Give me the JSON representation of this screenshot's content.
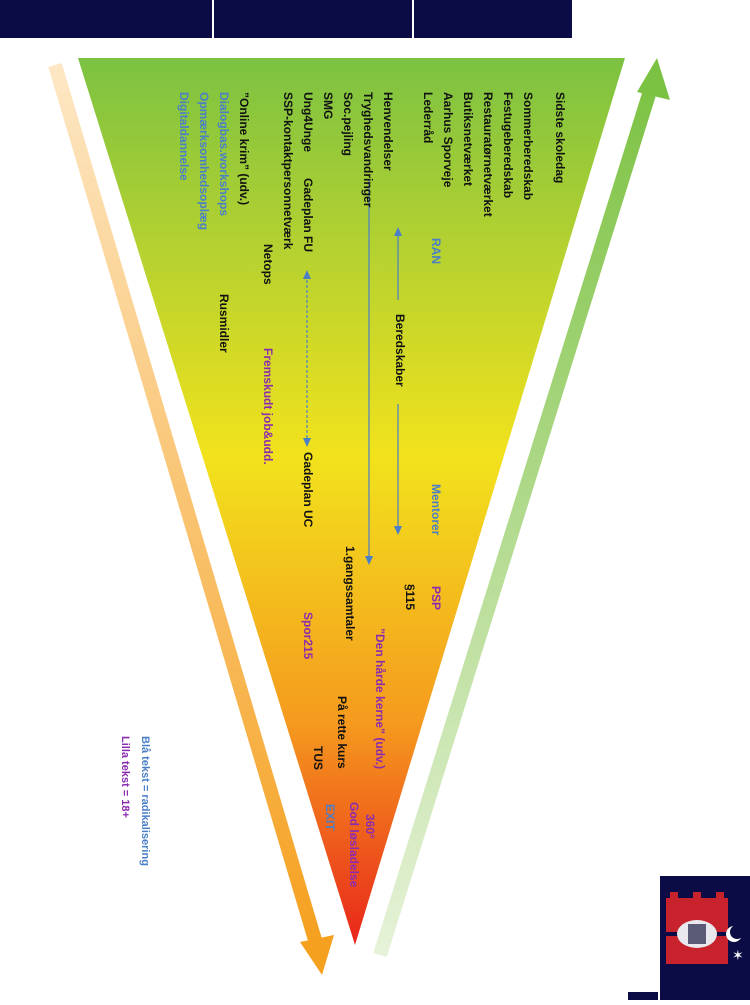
{
  "colors": {
    "header_bar": "#0b0b45",
    "funnel_top": "#7cc242",
    "funnel_mid": "#f2e21c",
    "funnel_bottom": "#e8251a",
    "text_black": "#111111",
    "text_blue": "#4a7fc8",
    "text_purple": "#8a2bb0",
    "arrow_green": "#8dc63f",
    "arrow_orange": "#f5a623"
  },
  "labels": {
    "sidste_skoledag": "Sidste skoledag",
    "sommerberedskab": "Sommerberedskab",
    "festugeberedskab": "Festugeberedskab",
    "restaurat": "Restauratørnetværket",
    "butiks": "Butiksnetværket",
    "sporvogn": "Aarhus Sporveje",
    "lederraad": "Lederråd",
    "henvendelser": "Henvendelser",
    "tryghed": "Tryghedsvandringer",
    "socpejling": "Soc.pejling",
    "smg": "SMG",
    "ung4unge": "Ung4Unge",
    "ssp_netvaerk": "SSP-kontaktpersonnetværk",
    "online_krim": "”Online krim” (udv.)",
    "dialogbas": "Dialogbas.workshops",
    "opmaerksomhed": "Opmærksomhedsoplæg",
    "digital": "Digitaldannelse",
    "ran": "RAN",
    "gadeplan_fu": "Gadeplan FU",
    "netops": "Netops",
    "rusmidler": "Rusmidler",
    "beredskaber": "Beredskaber",
    "fremskudt": "Fremskudt job&udd.",
    "mentorer": "Mentorer",
    "gadeplan_uc": "Gadeplan UC",
    "psp": "PSP",
    "p115": "§115",
    "gangssamtaler": "1.gangssamtaler",
    "hardekerne": "”Den hårde kerne” (udv.)",
    "spor215": "Spor215",
    "paa_rette_kurs": "På rette kurs",
    "tus": "TUS",
    "deg360": "360°",
    "exit": "EXIT",
    "god_loesladelse": "God løsladelse"
  },
  "legend": {
    "blue": "Blå tekst = radikalisering",
    "purple": "Lilla tekst = 18+"
  }
}
